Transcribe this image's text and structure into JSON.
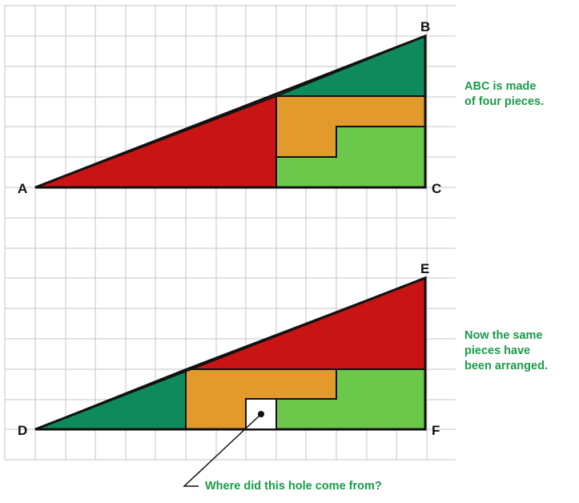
{
  "vertices": {
    "A": "A",
    "B": "B",
    "C": "C",
    "D": "D",
    "E": "E",
    "F": "F"
  },
  "note_top": [
    "ABC is made",
    "of four pieces."
  ],
  "note_bottom": [
    "Now the same",
    "pieces have",
    "been arranged."
  ],
  "callout": "Where did this hole come from?",
  "colors": {
    "text_green": "#1a9a4a",
    "grid": "#c4c4c4",
    "red": "#c81414",
    "dark_green": "#0e8a5c",
    "orange": "#e29a2c",
    "light_green": "#6cc84a",
    "outline": "#111111"
  }
}
